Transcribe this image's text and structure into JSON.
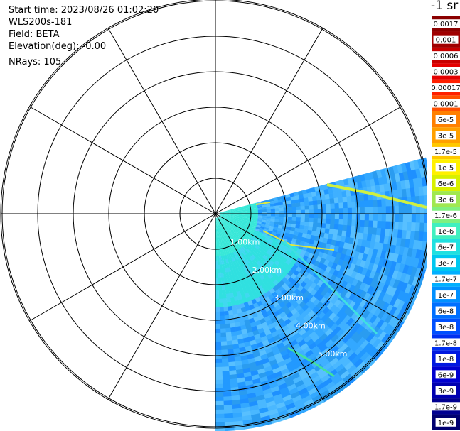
{
  "info": {
    "start_time": "Start time: 2023/08/26 01:02:20",
    "instrument": "WLS200s-181",
    "field": "Field: BETA",
    "elevation": "Elevation(deg): -0.00",
    "nrays": "NRays: 105"
  },
  "colorbar": {
    "title": "-1 sr",
    "labels": [
      "0.0017",
      "0.001",
      "0.0006",
      "0.0003",
      "0.00017",
      "0.0001",
      "6e-5",
      "3e-5",
      "1.7e-5",
      "1e-5",
      "6e-6",
      "3e-6",
      "1.7e-6",
      "1e-6",
      "6e-7",
      "3e-7",
      "1.7e-7",
      "1e-7",
      "6e-8",
      "3e-8",
      "1.7e-8",
      "1e-8",
      "6e-9",
      "3e-9",
      "1.7e-9",
      "1e-9"
    ],
    "colors": [
      "#8b0000",
      "#a00000",
      "#c80000",
      "#e40000",
      "#ff2000",
      "#ff5000",
      "#ff8000",
      "#ffa000",
      "#ffc800",
      "#fff000",
      "#d8f000",
      "#a0e850",
      "#80f080",
      "#40f0c0",
      "#20e0e0",
      "#00c8f0",
      "#00b0ff",
      "#0090ff",
      "#0070ff",
      "#0050ff",
      "#0030f0",
      "#0018e0",
      "#0000d0",
      "#0000b0",
      "#000090",
      "#000070"
    ]
  },
  "range_labels": [
    "1.00km",
    "2.00km",
    "3.00km",
    "4.00km",
    "5.00km"
  ]
}
